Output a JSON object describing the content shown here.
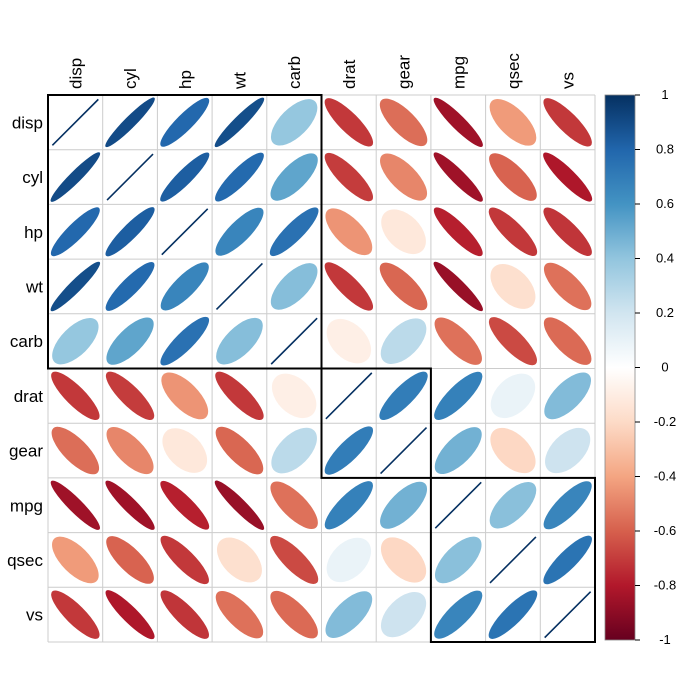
{
  "chart_data": {
    "type": "heatmap",
    "variables": [
      "disp",
      "cyl",
      "hp",
      "wt",
      "carb",
      "drat",
      "gear",
      "mpg",
      "qsec",
      "vs"
    ],
    "matrix": [
      [
        1.0,
        0.9,
        0.79,
        0.89,
        0.39,
        -0.71,
        -0.56,
        -0.85,
        -0.43,
        -0.71
      ],
      [
        0.9,
        1.0,
        0.83,
        0.78,
        0.53,
        -0.7,
        -0.49,
        -0.85,
        -0.59,
        -0.81
      ],
      [
        0.79,
        0.83,
        1.0,
        0.66,
        0.75,
        -0.45,
        -0.13,
        -0.78,
        -0.71,
        -0.72
      ],
      [
        0.89,
        0.78,
        0.66,
        1.0,
        0.43,
        -0.71,
        -0.58,
        -0.87,
        -0.17,
        -0.55
      ],
      [
        0.39,
        0.53,
        0.75,
        0.43,
        1.0,
        -0.09,
        0.27,
        -0.55,
        -0.66,
        -0.57
      ],
      [
        -0.71,
        -0.7,
        -0.45,
        -0.71,
        -0.09,
        1.0,
        0.7,
        0.68,
        0.09,
        0.44
      ],
      [
        -0.56,
        -0.49,
        -0.13,
        -0.58,
        0.27,
        0.7,
        1.0,
        0.48,
        -0.21,
        0.21
      ],
      [
        -0.85,
        -0.85,
        -0.78,
        -0.87,
        -0.55,
        0.68,
        0.48,
        1.0,
        0.42,
        0.66
      ],
      [
        -0.43,
        -0.59,
        -0.71,
        -0.17,
        -0.66,
        0.09,
        -0.21,
        0.42,
        1.0,
        0.74
      ],
      [
        -0.71,
        -0.81,
        -0.72,
        -0.55,
        -0.57,
        0.44,
        0.21,
        0.66,
        0.74,
        1.0
      ]
    ],
    "method": "ellipse",
    "clusters": [
      [
        "disp",
        "cyl",
        "hp",
        "wt",
        "carb"
      ],
      [
        "drat",
        "gear"
      ],
      [
        "mpg",
        "qsec",
        "vs"
      ]
    ],
    "colorbar": {
      "range": [
        -1,
        1
      ],
      "ticks": [
        "1",
        "0.8",
        "0.6",
        "0.4",
        "0.2",
        "0",
        "-0.2",
        "-0.4",
        "-0.6",
        "-0.8",
        "-1"
      ],
      "colors": [
        "#67001F",
        "#B2182B",
        "#D6604D",
        "#F4A582",
        "#FDDBC7",
        "#FFFFFF",
        "#D1E5F0",
        "#92C5DE",
        "#4393C3",
        "#2166AC",
        "#053061"
      ]
    },
    "grid_color": "#cccccc",
    "cluster_border_color": "#000000"
  }
}
